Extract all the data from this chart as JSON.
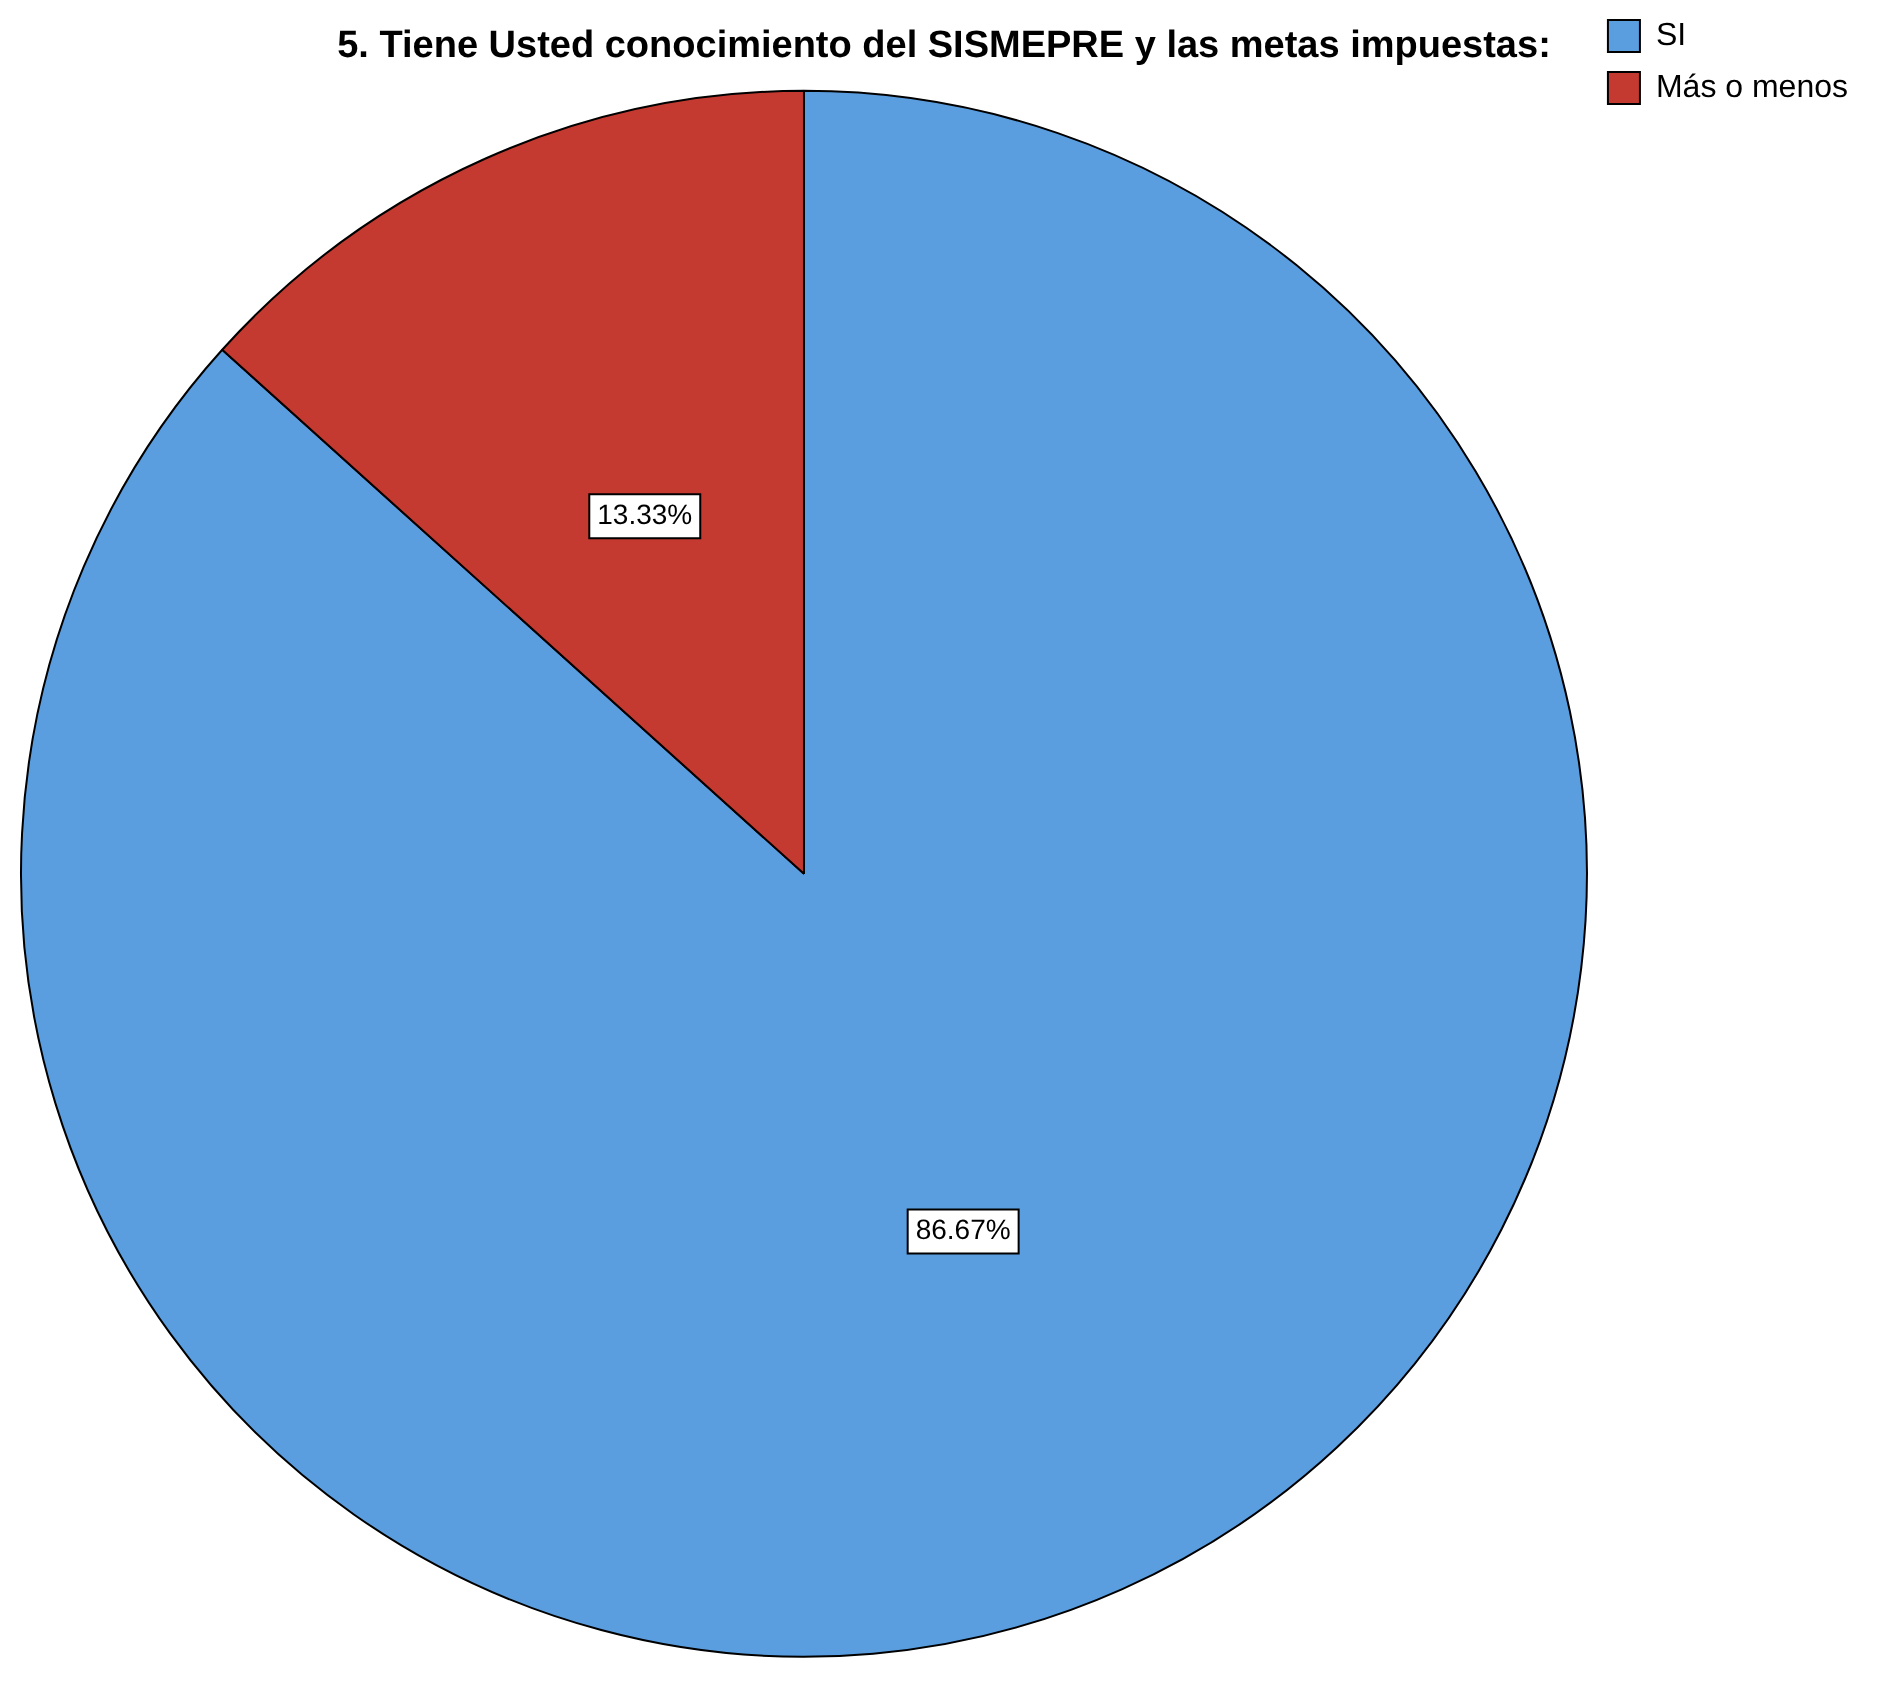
{
  "chart_data": {
    "type": "pie",
    "title": "5. Tiene Usted conocimiento del SISMEPRE y las metas impuestas:",
    "categories": [
      "SI",
      "Más o menos"
    ],
    "values": [
      86.67,
      13.33
    ],
    "colors": [
      "#5a9ee0",
      "#c53a30"
    ],
    "value_labels": [
      "86.67%",
      "13.33%"
    ],
    "legend": "top right"
  }
}
